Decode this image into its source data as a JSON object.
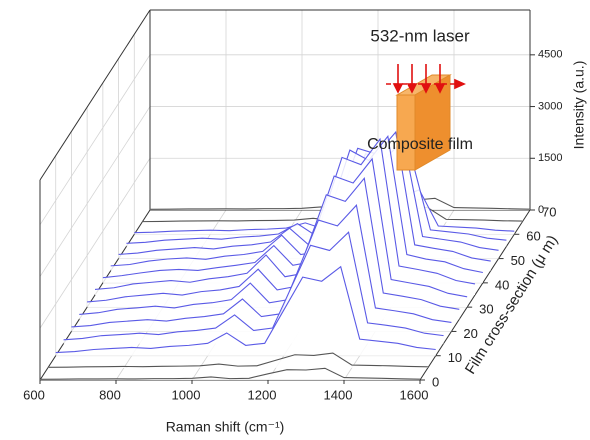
{
  "chart_data": {
    "type": "waterfall3d",
    "x_label": "Raman shift (cm⁻¹)",
    "y_label": "Film cross-section (μ m)",
    "z_label": "Intensity (a.u.)",
    "annotations": [
      "532-nm laser",
      "Composite film"
    ],
    "xlim": [
      600,
      1600
    ],
    "ylim": [
      0,
      70
    ],
    "zlim": [
      0,
      5800
    ],
    "xticks": [
      600,
      800,
      1000,
      1200,
      1400,
      1600
    ],
    "yticks": [
      0,
      10,
      20,
      30,
      40,
      50,
      60,
      70
    ],
    "zticks": [
      0,
      1500,
      3000,
      4500
    ],
    "grid": true,
    "x": [
      600,
      650,
      700,
      750,
      800,
      850,
      900,
      950,
      1000,
      1050,
      1100,
      1150,
      1200,
      1250,
      1300,
      1350,
      1400,
      1450,
      1500,
      1550,
      1600
    ],
    "series": [
      {
        "depth": 0,
        "color": "#555555",
        "values": [
          20,
          25,
          30,
          30,
          35,
          30,
          40,
          40,
          50,
          90,
          40,
          50,
          180,
          300,
          290,
          340,
          70,
          60,
          50,
          35,
          25
        ]
      },
      {
        "depth": 5,
        "color": "#555555",
        "values": [
          15,
          20,
          30,
          35,
          40,
          35,
          45,
          50,
          60,
          110,
          50,
          60,
          220,
          380,
          360,
          430,
          80,
          70,
          60,
          40,
          30
        ]
      },
      {
        "depth": 10,
        "color": "#5a5ae6",
        "values": [
          90,
          120,
          180,
          210,
          240,
          210,
          270,
          300,
          360,
          660,
          300,
          360,
          1320,
          2280,
          2160,
          2580,
          480,
          420,
          360,
          240,
          180
        ]
      },
      {
        "depth": 15,
        "color": "#5a5ae6",
        "values": [
          110,
          150,
          230,
          260,
          300,
          260,
          340,
          380,
          450,
          830,
          380,
          450,
          1650,
          2850,
          2700,
          3230,
          600,
          530,
          450,
          300,
          230
        ]
      },
      {
        "depth": 20,
        "color": "#5a5ae6",
        "values": [
          130,
          170,
          260,
          300,
          340,
          300,
          380,
          430,
          510,
          940,
          430,
          510,
          1870,
          3230,
          3060,
          3660,
          680,
          600,
          510,
          340,
          260
        ]
      },
      {
        "depth": 25,
        "color": "#5a5ae6",
        "values": [
          140,
          190,
          290,
          330,
          380,
          330,
          430,
          480,
          570,
          1050,
          480,
          570,
          2090,
          3610,
          3420,
          4090,
          760,
          670,
          570,
          380,
          290
        ]
      },
      {
        "depth": 30,
        "color": "#5a5ae6",
        "values": [
          150,
          200,
          300,
          350,
          400,
          350,
          450,
          500,
          600,
          1100,
          500,
          600,
          2200,
          3800,
          3600,
          4300,
          800,
          700,
          600,
          400,
          300
        ]
      },
      {
        "depth": 35,
        "color": "#5a5ae6",
        "values": [
          160,
          210,
          320,
          370,
          420,
          370,
          470,
          530,
          630,
          1160,
          530,
          630,
          2310,
          3990,
          3780,
          4520,
          840,
          740,
          630,
          420,
          320
        ]
      },
      {
        "depth": 40,
        "color": "#5a5ae6",
        "values": [
          150,
          210,
          290,
          360,
          390,
          360,
          440,
          510,
          590,
          1080,
          510,
          610,
          2150,
          3850,
          3550,
          4250,
          820,
          690,
          610,
          410,
          300
        ]
      },
      {
        "depth": 45,
        "color": "#5a5ae6",
        "values": [
          140,
          180,
          280,
          340,
          370,
          330,
          420,
          470,
          560,
          1030,
          470,
          560,
          2050,
          3550,
          3380,
          4020,
          750,
          650,
          560,
          370,
          280
        ]
      },
      {
        "depth": 50,
        "color": "#5a5ae6",
        "values": [
          120,
          160,
          240,
          280,
          320,
          280,
          360,
          400,
          480,
          880,
          400,
          480,
          1760,
          3040,
          2880,
          3440,
          640,
          560,
          480,
          320,
          240
        ]
      },
      {
        "depth": 55,
        "color": "#5a5ae6",
        "values": [
          90,
          120,
          180,
          210,
          240,
          210,
          270,
          300,
          360,
          660,
          300,
          360,
          1320,
          2280,
          2160,
          2580,
          480,
          420,
          360,
          240,
          180
        ]
      },
      {
        "depth": 60,
        "color": "#5a5ae6",
        "values": [
          45,
          60,
          90,
          105,
          120,
          105,
          135,
          150,
          180,
          330,
          150,
          180,
          660,
          1140,
          1080,
          1290,
          240,
          210,
          180,
          120,
          90
        ]
      },
      {
        "depth": 65,
        "color": "#555555",
        "values": [
          15,
          20,
          30,
          35,
          40,
          35,
          45,
          50,
          60,
          110,
          50,
          60,
          220,
          380,
          360,
          430,
          80,
          70,
          60,
          40,
          30
        ]
      },
      {
        "depth": 70,
        "color": "#555555",
        "values": [
          20,
          25,
          30,
          30,
          35,
          30,
          40,
          40,
          50,
          90,
          40,
          50,
          180,
          300,
          290,
          340,
          70,
          60,
          50,
          35,
          25
        ]
      }
    ]
  }
}
